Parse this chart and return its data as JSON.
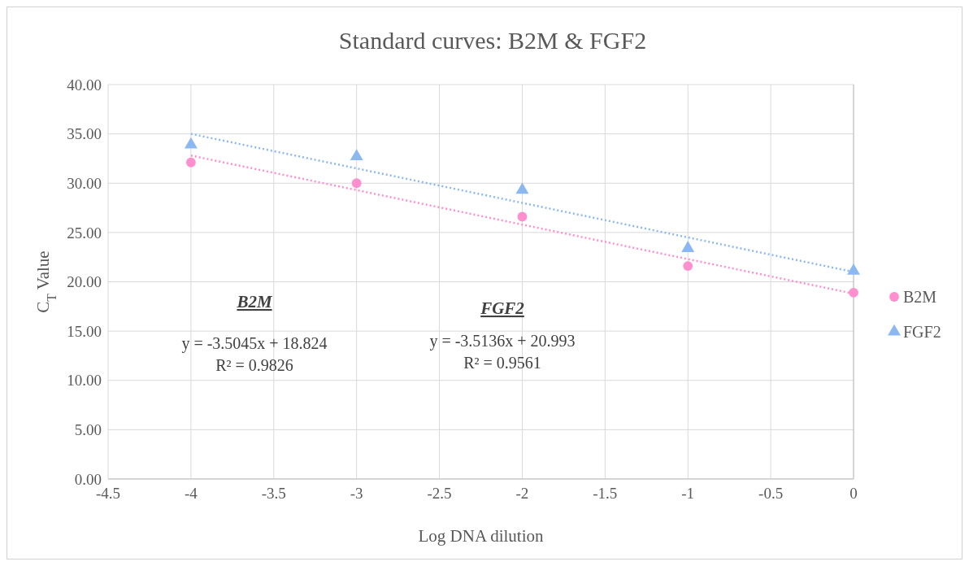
{
  "chart_data": {
    "type": "scatter",
    "title": "Standard curves: B2M & FGF2",
    "xlabel": "Log DNA dilution",
    "ylabel": "C$_{T}$ Value",
    "x": [
      -4,
      -3,
      -2,
      -1,
      0
    ],
    "series": [
      {
        "name": "B2M",
        "color": "#ff8fcf",
        "marker": "circle",
        "values": [
          32.1,
          30.0,
          26.6,
          21.6,
          18.9
        ]
      },
      {
        "name": "FGF2",
        "color": "#8cb8f2",
        "marker": "triangle",
        "values": [
          33.9,
          32.7,
          29.3,
          23.4,
          21.1
        ]
      },
      {
        "type": "line",
        "color": "#ff8fcf",
        "marker": "none",
        "line_style": "dotted",
        "values": [
          32.8,
          29.3,
          25.8,
          22.3,
          18.8
        ]
      },
      {
        "type": "line",
        "color": "#8cb8f2",
        "marker": "none",
        "line_style": "dotted",
        "values": [
          35.0,
          31.5,
          28.0,
          24.5,
          21.0
        ]
      }
    ],
    "xlim": [
      -4.5,
      0
    ],
    "xticks": [
      -4.5,
      -4,
      -3.5,
      -3,
      -2.5,
      -2,
      -1.5,
      -1,
      -0.5,
      0
    ],
    "ylim": [
      0,
      40
    ],
    "yticks": [
      {
        "value": 0,
        "label": "0.00"
      },
      {
        "value": 5,
        "label": "5.00"
      },
      {
        "value": 10,
        "label": "10.00"
      },
      {
        "value": 15,
        "label": "15.00"
      },
      {
        "value": 20,
        "label": "20.00"
      },
      {
        "value": 25,
        "label": "25.00"
      },
      {
        "value": 30,
        "label": "30.00"
      },
      {
        "value": 35,
        "label": "35.00"
      },
      {
        "value": 40,
        "label": "40.00"
      }
    ],
    "grid": true,
    "legend": "right",
    "annotations": [
      "B2M",
      "y = -3.5045x + 18.824",
      "R² = 0.9826",
      "FGF2",
      "y = -3.5136x + 20.993",
      "R² = 0.9561"
    ]
  }
}
